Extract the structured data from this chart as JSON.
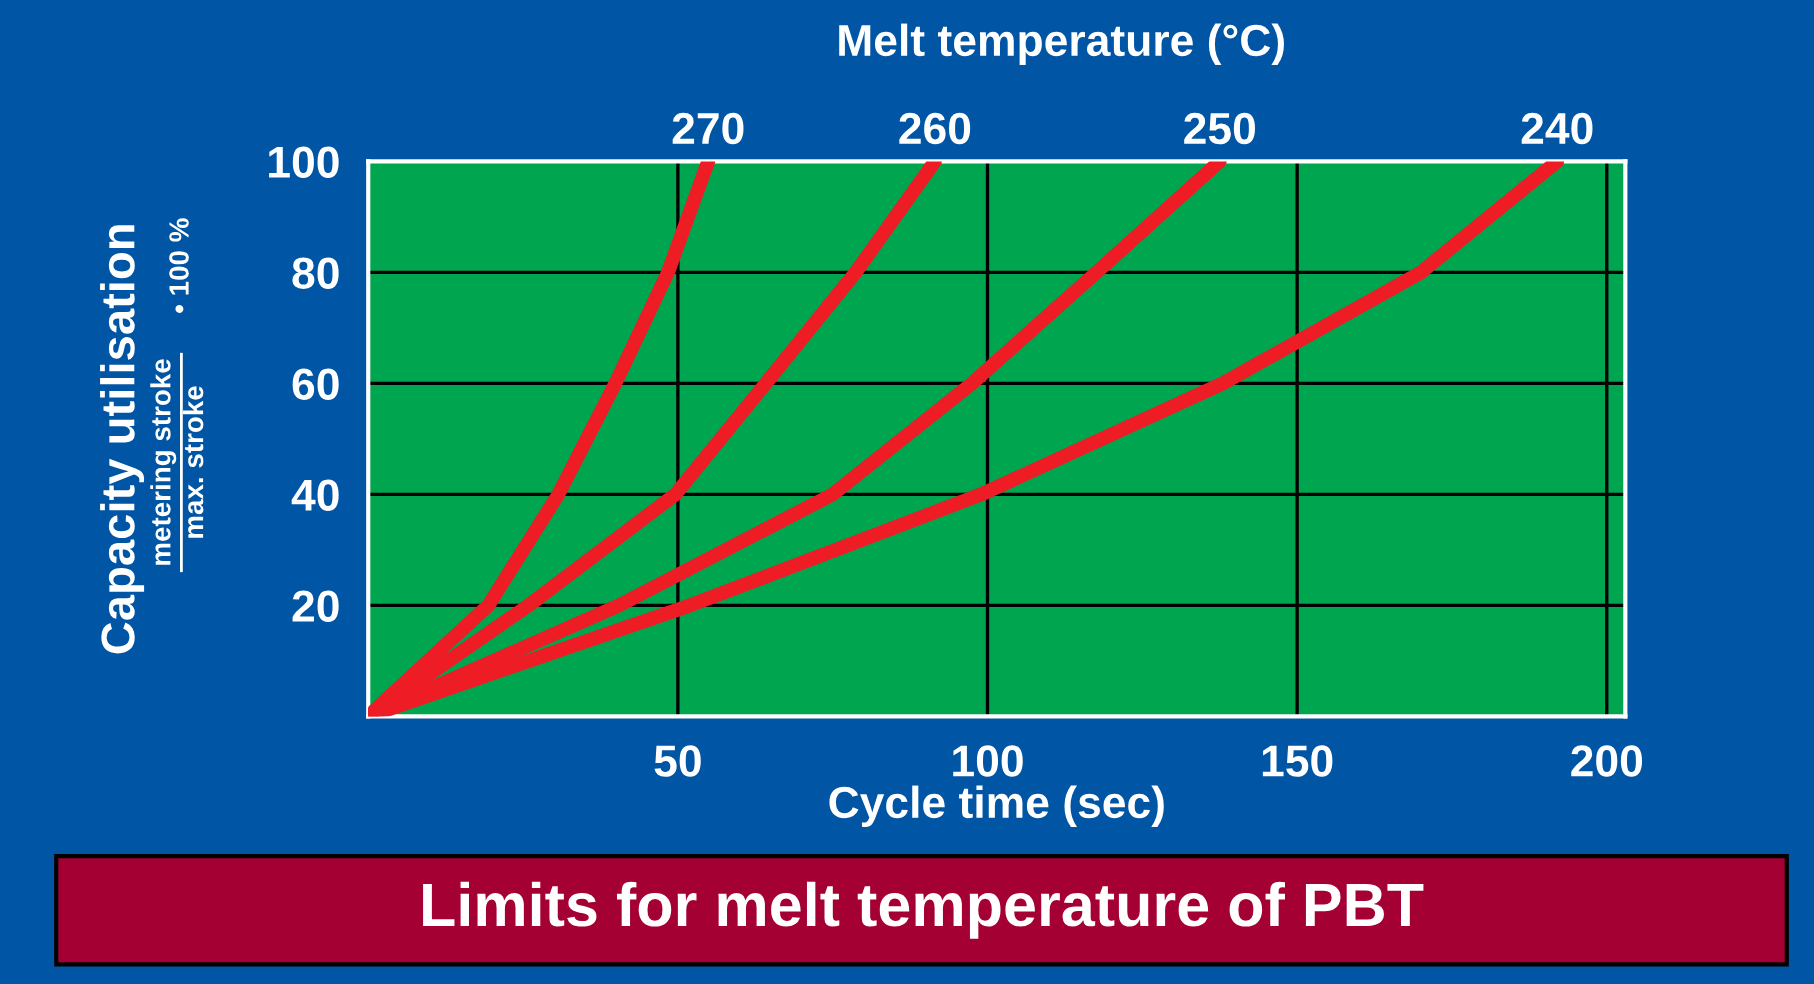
{
  "chart_data": {
    "type": "line",
    "title": "Limits for melt temperature of PBT",
    "xlabel": "Cycle time (sec)",
    "ylabel": "Capacity utilisation",
    "x2label": "Melt temperature (°C)",
    "annotations": [
      "metering stroke",
      "max. stroke",
      "• 100 %"
    ],
    "xlim": [
      0,
      203
    ],
    "ylim": [
      0,
      100
    ],
    "xticks": [
      50,
      100,
      150,
      200
    ],
    "yticks": [
      20,
      40,
      60,
      80,
      100
    ],
    "grid": true,
    "line_style": "solid",
    "marker": "none",
    "series": [
      {
        "name": "270",
        "color": "#ee1c25",
        "x": [
          0,
          19.4,
          30.7,
          39.9,
          48.4,
          54.9
        ],
        "values": [
          0,
          20,
          40,
          60,
          80,
          100
        ]
      },
      {
        "name": "260",
        "color": "#ee1c25",
        "x": [
          0,
          25.9,
          49.6,
          64.2,
          78.7,
          91.5
        ],
        "values": [
          0,
          20,
          40,
          60,
          80,
          100
        ]
      },
      {
        "name": "250",
        "color": "#ee1c25",
        "x": [
          0,
          40.5,
          75,
          97.5,
          117.6,
          137.5
        ],
        "values": [
          0,
          20,
          40,
          60,
          80,
          100
        ]
      },
      {
        "name": "240",
        "color": "#ee1c25",
        "x": [
          0,
          52,
          99,
          138,
          170,
          192
        ],
        "values": [
          0,
          20,
          40,
          60,
          80,
          100
        ]
      }
    ]
  }
}
